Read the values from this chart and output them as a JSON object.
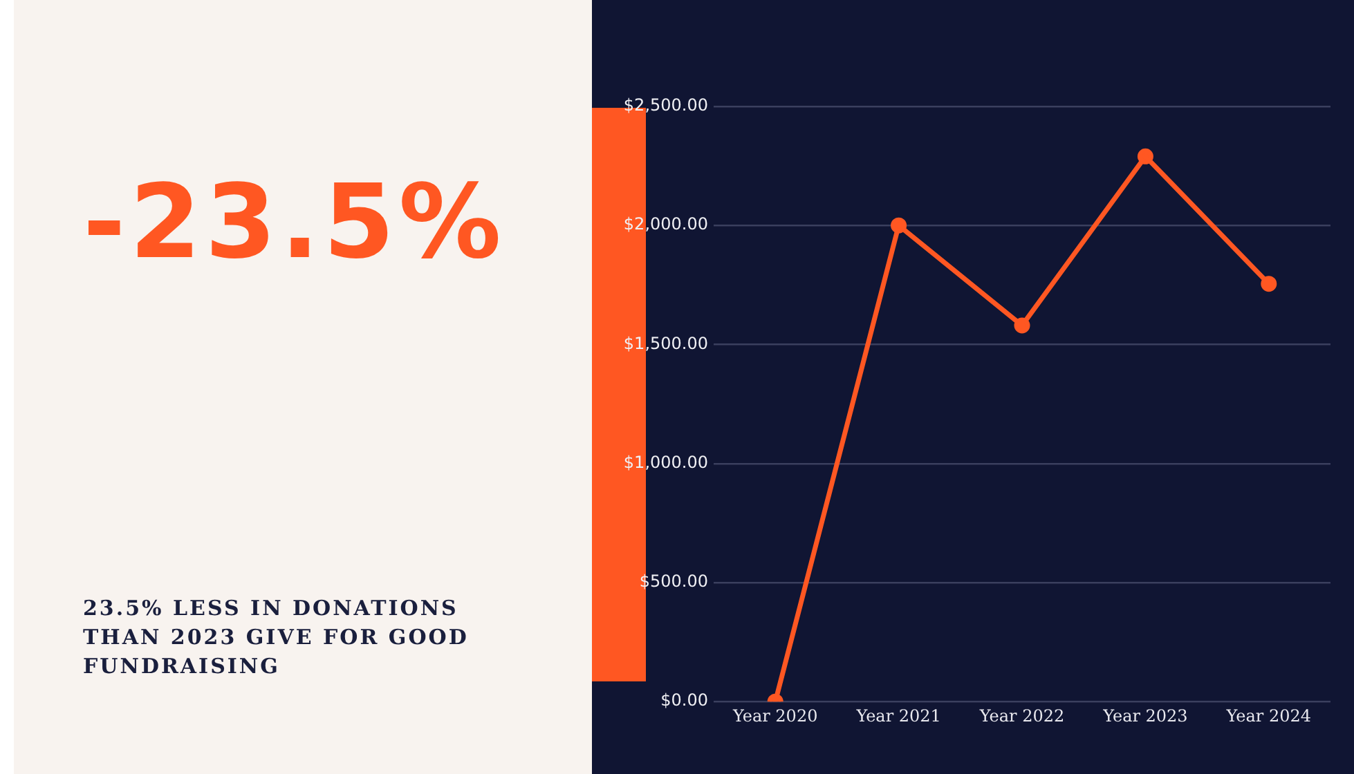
{
  "chart_data": {
    "type": "line",
    "title": "-23.5%",
    "subtitle": "23.5% LESS IN DONATIONS THAN 2023 GIVE FOR GOOD FUNDRAISING",
    "categories": [
      "Year 2020",
      "Year 2021",
      "Year 2022",
      "Year 2023",
      "Year 2024"
    ],
    "series": [
      {
        "color": "#ff5722",
        "values": [
          0,
          2000,
          1580,
          2290,
          1755
        ]
      }
    ],
    "ylim": [
      0,
      2500
    ],
    "yticks": [
      {
        "value": 0,
        "label": "$0.00"
      },
      {
        "value": 500,
        "label": "$500.00"
      },
      {
        "value": 1000,
        "label": "$1,000.00"
      },
      {
        "value": 1500,
        "label": "$1,500.00"
      },
      {
        "value": 2000,
        "label": "$2,000.00"
      },
      {
        "value": 2500,
        "label": "$2,500.00"
      }
    ],
    "grid": "y",
    "marker": "circle",
    "line_style": "solid",
    "legend": false
  }
}
